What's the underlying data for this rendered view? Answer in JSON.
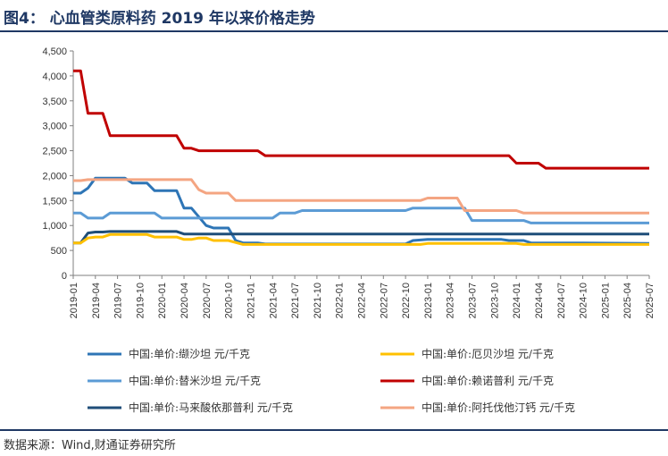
{
  "header": {
    "title": "图4：  心血管类原料药 2019 年以来价格走势"
  },
  "footer": {
    "source": "数据来源：Wind,财通证券研究所"
  },
  "chart_data": {
    "type": "line",
    "ylim": [
      0,
      4500
    ],
    "yticks": [
      "0",
      "500",
      "1,000",
      "1,500",
      "2,000",
      "2,500",
      "3,000",
      "3,500",
      "4,000",
      "4,500"
    ],
    "ytick_values": [
      0,
      500,
      1000,
      1500,
      2000,
      2500,
      3000,
      3500,
      4000,
      4500
    ],
    "xlim": [
      "2019-01",
      "2025-07"
    ],
    "xticks": [
      "2019-01",
      "2019-04",
      "2019-07",
      "2019-10",
      "2020-01",
      "2020-04",
      "2020-07",
      "2020-10",
      "2021-01",
      "2021-04",
      "2021-07",
      "2021-10",
      "2022-01",
      "2022-04",
      "2022-07",
      "2022-10",
      "2023-01",
      "2023-04",
      "2023-07",
      "2023-10",
      "2024-01",
      "2024-04",
      "2024-07",
      "2024-10",
      "2025-01",
      "2025-04",
      "2025-07"
    ],
    "grid": false,
    "legend_position": "bottom",
    "series": [
      {
        "name": "中国:单价:缬沙坦 元/千克",
        "color": "#2e75b6",
        "points": [
          [
            "2019-01",
            1650
          ],
          [
            "2019-02",
            1650
          ],
          [
            "2019-03",
            1750
          ],
          [
            "2019-04",
            1950
          ],
          [
            "2019-08",
            1950
          ],
          [
            "2019-09",
            1850
          ],
          [
            "2019-11",
            1850
          ],
          [
            "2019-12",
            1700
          ],
          [
            "2020-03",
            1700
          ],
          [
            "2020-04",
            1350
          ],
          [
            "2020-05",
            1350
          ],
          [
            "2020-07",
            1000
          ],
          [
            "2020-08",
            950
          ],
          [
            "2020-10",
            950
          ],
          [
            "2020-11",
            700
          ],
          [
            "2020-12",
            650
          ],
          [
            "2021-02",
            650
          ],
          [
            "2021-03",
            630
          ],
          [
            "2022-10",
            630
          ],
          [
            "2022-11",
            700
          ],
          [
            "2023-01",
            720
          ],
          [
            "2023-11",
            720
          ],
          [
            "2023-12",
            700
          ],
          [
            "2024-02",
            700
          ],
          [
            "2024-03",
            650
          ],
          [
            "2024-10",
            650
          ],
          [
            "2025-07",
            640
          ]
        ]
      },
      {
        "name": "中国:单价:替米沙坦 元/千克",
        "color": "#5b9bd5",
        "points": [
          [
            "2019-01",
            1250
          ],
          [
            "2019-02",
            1250
          ],
          [
            "2019-03",
            1150
          ],
          [
            "2019-05",
            1150
          ],
          [
            "2019-06",
            1250
          ],
          [
            "2019-12",
            1250
          ],
          [
            "2020-01",
            1150
          ],
          [
            "2021-04",
            1150
          ],
          [
            "2021-05",
            1250
          ],
          [
            "2021-07",
            1250
          ],
          [
            "2021-08",
            1300
          ],
          [
            "2022-10",
            1300
          ],
          [
            "2022-11",
            1350
          ],
          [
            "2023-06",
            1350
          ],
          [
            "2023-07",
            1100
          ],
          [
            "2024-02",
            1100
          ],
          [
            "2024-03",
            1050
          ],
          [
            "2025-07",
            1050
          ]
        ]
      },
      {
        "name": "中国:单价:马来酸依那普利 元/千克",
        "color": "#1f4e79",
        "points": [
          [
            "2019-01",
            650
          ],
          [
            "2019-02",
            650
          ],
          [
            "2019-03",
            850
          ],
          [
            "2019-04",
            870
          ],
          [
            "2019-05",
            870
          ],
          [
            "2019-06",
            880
          ],
          [
            "2020-03",
            880
          ],
          [
            "2020-04",
            830
          ],
          [
            "2025-07",
            830
          ]
        ]
      },
      {
        "name": "中国:单价:厄贝沙坦 元/千克",
        "color": "#ffc000",
        "points": [
          [
            "2019-01",
            650
          ],
          [
            "2019-02",
            650
          ],
          [
            "2019-03",
            750
          ],
          [
            "2019-04",
            770
          ],
          [
            "2019-05",
            770
          ],
          [
            "2019-06",
            820
          ],
          [
            "2019-11",
            820
          ],
          [
            "2019-12",
            770
          ],
          [
            "2020-03",
            770
          ],
          [
            "2020-04",
            720
          ],
          [
            "2020-05",
            720
          ],
          [
            "2020-06",
            750
          ],
          [
            "2020-07",
            750
          ],
          [
            "2020-08",
            700
          ],
          [
            "2020-10",
            700
          ],
          [
            "2020-12",
            620
          ],
          [
            "2022-12",
            620
          ],
          [
            "2023-01",
            640
          ],
          [
            "2024-01",
            640
          ],
          [
            "2024-02",
            620
          ],
          [
            "2025-07",
            620
          ]
        ]
      },
      {
        "name": "中国:单价:赖诺普利 元/千克",
        "color": "#c00000",
        "points": [
          [
            "2019-01",
            4100
          ],
          [
            "2019-02",
            4100
          ],
          [
            "2019-03",
            3250
          ],
          [
            "2019-05",
            3250
          ],
          [
            "2019-06",
            2800
          ],
          [
            "2020-03",
            2800
          ],
          [
            "2020-04",
            2550
          ],
          [
            "2020-05",
            2550
          ],
          [
            "2020-06",
            2500
          ],
          [
            "2021-02",
            2500
          ],
          [
            "2021-03",
            2400
          ],
          [
            "2023-12",
            2400
          ],
          [
            "2024-01",
            2250
          ],
          [
            "2024-04",
            2250
          ],
          [
            "2024-05",
            2150
          ],
          [
            "2025-07",
            2150
          ]
        ]
      },
      {
        "name": "中国:单价:阿托伐他汀钙 元/千克",
        "color": "#f4a582",
        "points": [
          [
            "2019-01",
            1900
          ],
          [
            "2019-02",
            1900
          ],
          [
            "2019-03",
            1920
          ],
          [
            "2020-05",
            1920
          ],
          [
            "2020-06",
            1720
          ],
          [
            "2020-07",
            1650
          ],
          [
            "2020-10",
            1650
          ],
          [
            "2020-11",
            1500
          ],
          [
            "2022-12",
            1500
          ],
          [
            "2023-01",
            1550
          ],
          [
            "2023-05",
            1550
          ],
          [
            "2023-06",
            1300
          ],
          [
            "2024-01",
            1300
          ],
          [
            "2024-02",
            1250
          ],
          [
            "2025-07",
            1250
          ]
        ]
      }
    ],
    "legend": [
      {
        "label": "中国:单价:缬沙坦 元/千克",
        "color": "#2e75b6"
      },
      {
        "label": "中国:单价:厄贝沙坦 元/千克",
        "color": "#ffc000"
      },
      {
        "label": "中国:单价:替米沙坦 元/千克",
        "color": "#5b9bd5"
      },
      {
        "label": "中国:单价:赖诺普利 元/千克",
        "color": "#c00000"
      },
      {
        "label": "中国:单价:马来酸依那普利 元/千克",
        "color": "#1f4e79"
      },
      {
        "label": "中国:单价:阿托伐他汀钙 元/千克",
        "color": "#f4a582"
      }
    ]
  }
}
